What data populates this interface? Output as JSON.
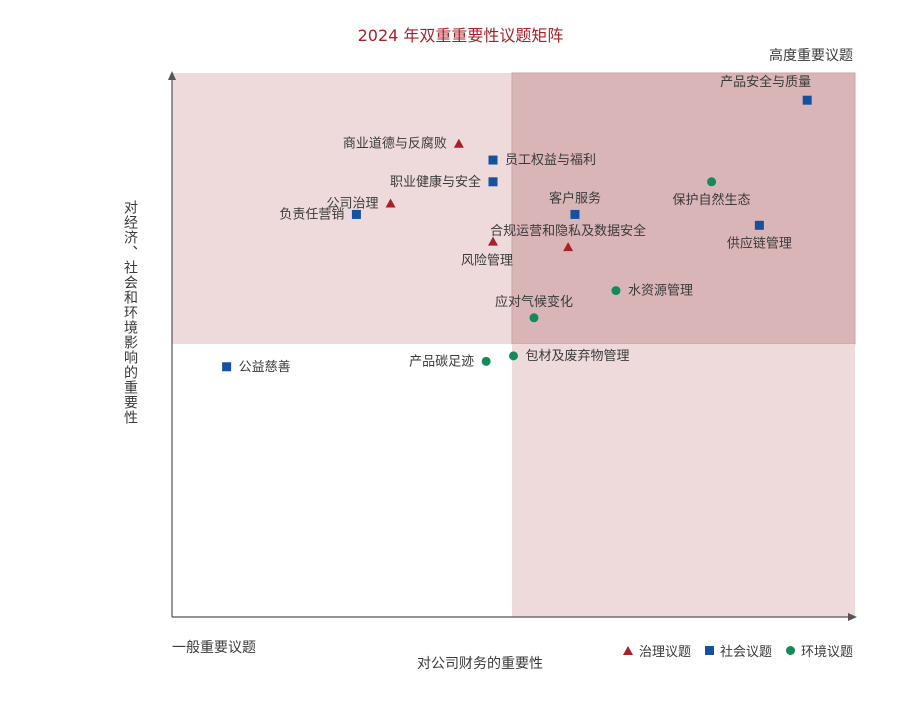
{
  "chart_data": {
    "type": "scatter",
    "title": "2024 年双重重要性议题矩阵",
    "xlabel": "对公司财务的重要性",
    "ylabel": "对经济、社会和环境影响的重要性",
    "corner_high": "高度重要议题",
    "corner_low": "一般重要议题",
    "xlim": [
      0,
      10
    ],
    "ylim": [
      0,
      10
    ],
    "colors": {
      "governance": "#a8202a",
      "social": "#1452a0",
      "environment": "#138a58"
    },
    "legend": [
      {
        "category": "governance",
        "label": "治理议题",
        "marker": "triangle"
      },
      {
        "category": "social",
        "label": "社会议题",
        "marker": "square"
      },
      {
        "category": "environment",
        "label": "环境议题",
        "marker": "circle"
      }
    ],
    "points": [
      {
        "label": "产品安全与质量",
        "category": "social",
        "x": 9.3,
        "y": 9.5,
        "label_pos": "above-left"
      },
      {
        "label": "商业道德与反腐败",
        "category": "governance",
        "x": 4.2,
        "y": 8.7,
        "label_pos": "left"
      },
      {
        "label": "员工权益与福利",
        "category": "social",
        "x": 4.7,
        "y": 8.4,
        "label_pos": "right"
      },
      {
        "label": "职业健康与安全",
        "category": "social",
        "x": 4.7,
        "y": 8.0,
        "label_pos": "left"
      },
      {
        "label": "保护自然生态",
        "category": "environment",
        "x": 7.9,
        "y": 8.0,
        "label_pos": "below"
      },
      {
        "label": "公司治理",
        "category": "governance",
        "x": 3.2,
        "y": 7.6,
        "label_pos": "left"
      },
      {
        "label": "客户服务",
        "category": "social",
        "x": 5.9,
        "y": 7.4,
        "label_pos": "above"
      },
      {
        "label": "负责任营销",
        "category": "social",
        "x": 2.7,
        "y": 7.4,
        "label_pos": "left"
      },
      {
        "label": "供应链管理",
        "category": "social",
        "x": 8.6,
        "y": 7.2,
        "label_pos": "below"
      },
      {
        "label": "风险管理",
        "category": "governance",
        "x": 4.7,
        "y": 6.9,
        "label_pos": "below-left"
      },
      {
        "label": "合规运营和隐私及数据安全",
        "category": "governance",
        "x": 5.8,
        "y": 6.8,
        "label_pos": "above"
      },
      {
        "label": "水资源管理",
        "category": "environment",
        "x": 6.5,
        "y": 6.0,
        "label_pos": "right"
      },
      {
        "label": "应对气候变化",
        "category": "environment",
        "x": 5.3,
        "y": 5.5,
        "label_pos": "above"
      },
      {
        "label": "包材及废弃物管理",
        "category": "environment",
        "x": 5.0,
        "y": 4.8,
        "label_pos": "right"
      },
      {
        "label": "产品碳足迹",
        "category": "environment",
        "x": 4.6,
        "y": 4.7,
        "label_pos": "left"
      },
      {
        "label": "公益慈善",
        "category": "social",
        "x": 0.8,
        "y": 4.6,
        "label_pos": "right"
      }
    ]
  }
}
